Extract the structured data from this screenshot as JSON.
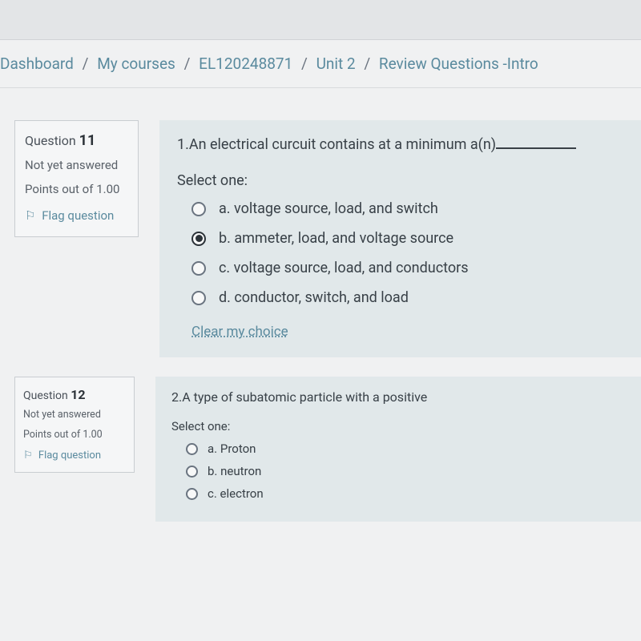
{
  "breadcrumb": {
    "items": [
      "Dashboard",
      "My courses",
      "EL120248871",
      "Unit 2",
      "Review Questions -Intro"
    ],
    "separator": "/"
  },
  "questions": [
    {
      "label_prefix": "Question",
      "number": "11",
      "status": "Not yet answered",
      "points_label": "Points out of",
      "points_value": "1.00",
      "flag_label": "Flag question",
      "text_prefix": "1.An electrical curcuit contains at a minimum a(n)",
      "select_label": "Select one:",
      "options": [
        {
          "letter": "a.",
          "text": "voltage source, load, and switch",
          "checked": false
        },
        {
          "letter": "b.",
          "text": "ammeter, load, and voltage source",
          "checked": true
        },
        {
          "letter": "c.",
          "text": "voltage source, load, and conductors",
          "checked": false
        },
        {
          "letter": "d.",
          "text": "conductor, switch, and load",
          "checked": false
        }
      ],
      "clear_label": "Clear my choice"
    },
    {
      "label_prefix": "Question",
      "number": "12",
      "status": "Not yet answered",
      "points_label": "Points out of",
      "points_value": "1.00",
      "flag_label": "Flag question",
      "text_prefix": "2.A type of subatomic particle with a positive",
      "select_label": "Select one:",
      "options": [
        {
          "letter": "a.",
          "text": "Proton",
          "checked": false
        },
        {
          "letter": "b.",
          "text": "neutron",
          "checked": false
        },
        {
          "letter": "c.",
          "text": "electron",
          "checked": false
        }
      ]
    }
  ],
  "colors": {
    "link": "#5a8a9e",
    "body_bg": "#f0f1f2",
    "panel_bg": "#e1e8ea",
    "border": "#c9cdd1",
    "text": "#384047"
  }
}
